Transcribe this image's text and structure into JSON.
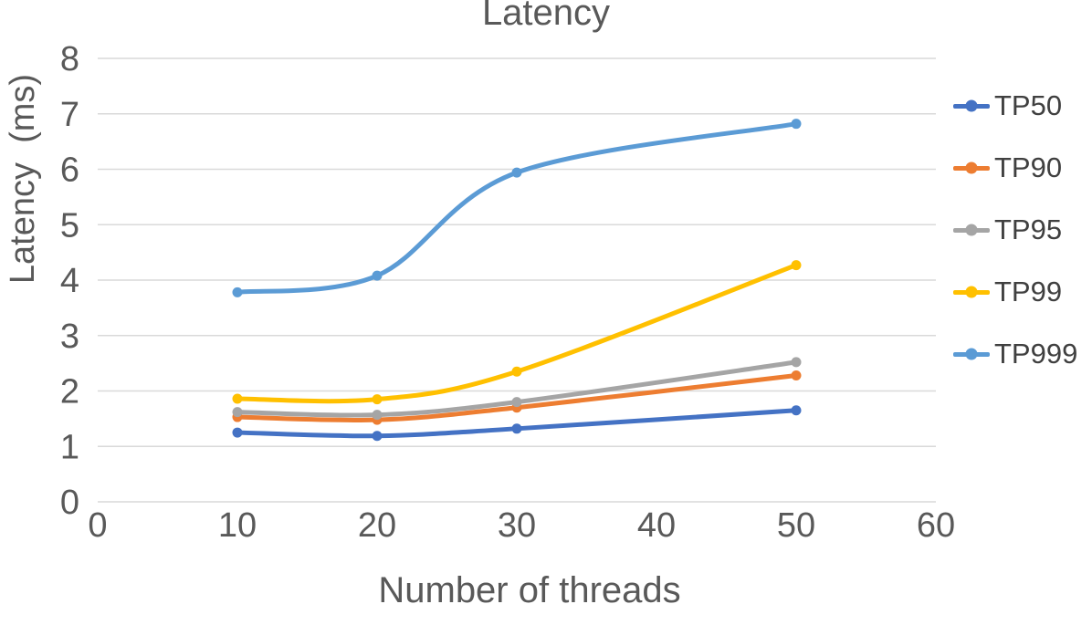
{
  "chart": {
    "title": "Latency",
    "y_axis_label": "Latency  (ms)",
    "x_axis_label": "Number of threads"
  },
  "colors": {
    "gridline": "#D9D9D9",
    "axis_text": "#595959",
    "legend_text": "#404040",
    "background": "#FFFFFF"
  },
  "chart_data": {
    "type": "line",
    "title": "Latency",
    "xlabel": "Number of threads",
    "ylabel": "Latency (ms)",
    "x": [
      10,
      20,
      30,
      50
    ],
    "x_ticks": [
      0,
      10,
      20,
      30,
      40,
      50,
      60
    ],
    "y_ticks": [
      0,
      1,
      2,
      3,
      4,
      5,
      6,
      7,
      8
    ],
    "xlim": [
      0,
      60
    ],
    "ylim": [
      0,
      8
    ],
    "grid": "horizontal",
    "legend_position": "right",
    "smooth_lines": true,
    "markers": true,
    "series": [
      {
        "name": "TP50",
        "color": "#4472C4",
        "values": [
          1.25,
          1.19,
          1.32,
          1.65
        ]
      },
      {
        "name": "TP90",
        "color": "#ED7D31",
        "values": [
          1.53,
          1.48,
          1.7,
          2.28
        ]
      },
      {
        "name": "TP95",
        "color": "#A5A5A5",
        "values": [
          1.62,
          1.57,
          1.8,
          2.52
        ]
      },
      {
        "name": "TP99",
        "color": "#FFC000",
        "values": [
          1.86,
          1.85,
          2.35,
          4.27
        ]
      },
      {
        "name": "TP999",
        "color": "#5B9BD5",
        "values": [
          3.78,
          4.08,
          5.94,
          6.82
        ]
      }
    ]
  }
}
